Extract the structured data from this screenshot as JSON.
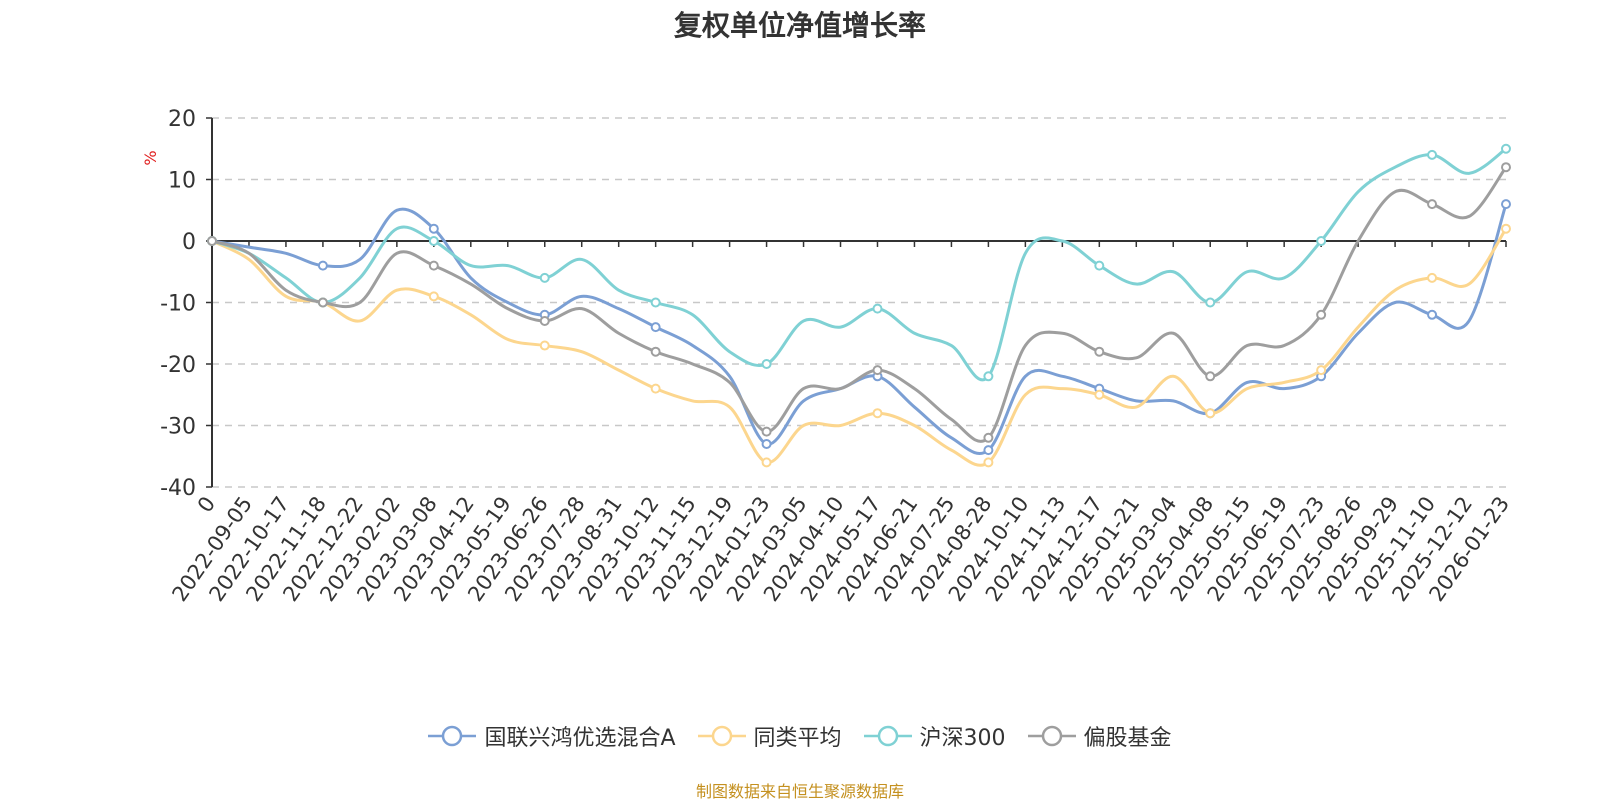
{
  "chart_data": {
    "type": "line",
    "title": "复权单位净值增长率",
    "ylabel": "%",
    "xlabel": "",
    "ylim": [
      -40,
      20
    ],
    "yticks": [
      20,
      10,
      0,
      -10,
      -20,
      -30,
      -40
    ],
    "grid": true,
    "legend_position": "bottom",
    "categories": [
      "0",
      "2022-09-05",
      "2022-10-17",
      "2022-11-18",
      "2022-12-22",
      "2023-02-02",
      "2023-03-08",
      "2023-04-12",
      "2023-05-19",
      "2023-06-26",
      "2023-07-28",
      "2023-08-31",
      "2023-10-12",
      "2023-11-15",
      "2023-12-19",
      "2024-01-23",
      "2024-03-05",
      "2024-04-10",
      "2024-05-17",
      "2024-06-21",
      "2024-07-25",
      "2024-08-28",
      "2024-10-10",
      "2024-11-13",
      "2024-12-17",
      "2025-01-21",
      "2025-03-04",
      "2025-04-08",
      "2025-05-15",
      "2025-06-19",
      "2025-07-23",
      "2025-08-26",
      "2025-09-29",
      "2025-11-10",
      "2025-12-12",
      "2026-01-23"
    ],
    "series": [
      {
        "name": "国联兴鸿优选混合A",
        "color": "#7b9fd4",
        "values": [
          0,
          -1,
          -2,
          -4,
          -3,
          5,
          2,
          -6,
          -10,
          -12,
          -9,
          -11,
          -14,
          -17,
          -22,
          -33,
          -26,
          -24,
          -22,
          -27,
          -32,
          -34,
          -22,
          -22,
          -24,
          -26,
          -26,
          -28,
          -23,
          -24,
          -22,
          -15,
          -10,
          -12,
          -13,
          6
        ]
      },
      {
        "name": "同类平均",
        "color": "#fcd68e",
        "values": [
          0,
          -3,
          -9,
          -10,
          -13,
          -8,
          -9,
          -12,
          -16,
          -17,
          -18,
          -21,
          -24,
          -26,
          -27,
          -36,
          -30,
          -30,
          -28,
          -30,
          -34,
          -36,
          -25,
          -24,
          -25,
          -27,
          -22,
          -28,
          -24,
          -23,
          -21,
          -14,
          -8,
          -6,
          -7,
          2
        ]
      },
      {
        "name": "沪深300",
        "color": "#7fd1d4",
        "values": [
          0,
          -2,
          -6,
          -10,
          -6,
          2,
          0,
          -4,
          -4,
          -6,
          -3,
          -8,
          -10,
          -12,
          -18,
          -20,
          -13,
          -14,
          -11,
          -15,
          -17,
          -22,
          -2,
          0,
          -4,
          -7,
          -5,
          -10,
          -5,
          -6,
          0,
          8,
          12,
          14,
          11,
          15
        ]
      },
      {
        "name": "偏股基金",
        "color": "#9e9e9e",
        "values": [
          0,
          -2,
          -8,
          -10,
          -10,
          -2,
          -4,
          -7,
          -11,
          -13,
          -11,
          -15,
          -18,
          -20,
          -23,
          -31,
          -24,
          -24,
          -21,
          -24,
          -29,
          -32,
          -17,
          -15,
          -18,
          -19,
          -15,
          -22,
          -17,
          -17,
          -12,
          0,
          8,
          6,
          4,
          12
        ]
      }
    ]
  },
  "source_text": "制图数据来自恒生聚源数据库"
}
